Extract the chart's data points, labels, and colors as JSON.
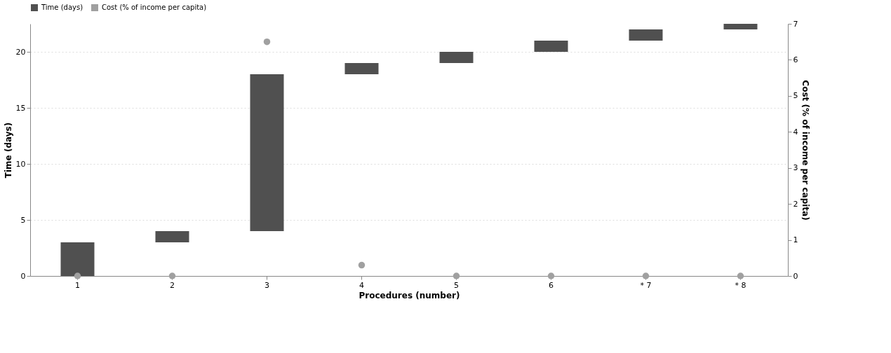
{
  "chart_data": {
    "type": "bar",
    "xlabel": "Procedures (number)",
    "ylabel": "Time (days)",
    "y2label": "Cost (% of income per capita)",
    "categories": [
      "1",
      "2",
      "3",
      "4",
      "5",
      "6",
      "* 7",
      "* 8"
    ],
    "series": [
      {
        "name": "Time (days)",
        "color": "#505050",
        "base": [
          0,
          3,
          4,
          18,
          19,
          20,
          21,
          22
        ],
        "values": [
          3,
          1,
          14,
          1,
          1,
          1,
          1,
          0.5
        ]
      },
      {
        "name": "Cost (% of income per capita)",
        "type": "scatter",
        "axis": "y2",
        "marker": "circle",
        "color": "#a0a0a0",
        "values": [
          0,
          0,
          6.5,
          0.3,
          0,
          0,
          0,
          0
        ]
      }
    ],
    "ylim": [
      0,
      22.5
    ],
    "yticks": [
      0,
      5,
      10,
      15,
      20
    ],
    "y2lim": [
      0,
      7
    ],
    "y2ticks": [
      0,
      1,
      2,
      3,
      4,
      5,
      6,
      7
    ],
    "grid": "y",
    "legend": "top"
  }
}
